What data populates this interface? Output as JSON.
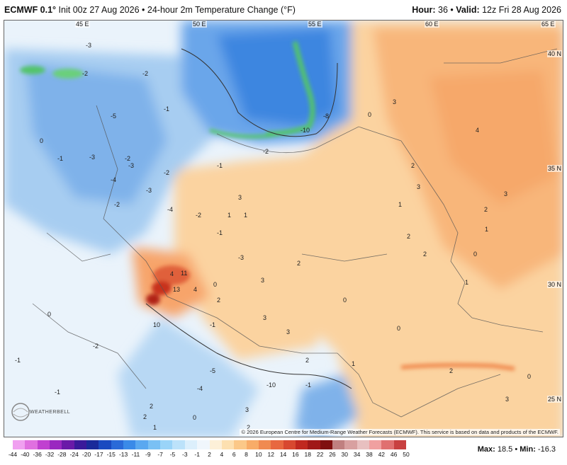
{
  "header": {
    "model": "ECMWF 0.1°",
    "init": "Init 00z 27 Aug 2026",
    "product": "24-hour 2m Temperature Change (°F)",
    "hour_label": "Hour:",
    "hour": "36",
    "valid_label": "Valid:",
    "valid": "12z Fri 28 Aug 2026"
  },
  "map": {
    "lon_labels": [
      "45 E",
      "50 E",
      "55 E",
      "60 E",
      "65 E"
    ],
    "lat_labels": [
      "40 N",
      "35 N",
      "30 N",
      "25 N"
    ],
    "value_labels": [
      "-3",
      "-2",
      "-5",
      "-2",
      "-1",
      "0",
      "-1",
      "-3",
      "-2",
      "-4",
      "-3",
      "-2",
      "-4",
      "-2",
      "-1",
      "-3",
      "-2",
      "3",
      "1",
      "-1",
      "-3",
      "-2",
      "-10",
      "-8",
      "0",
      "3",
      "4",
      "3",
      "2",
      "1",
      "2",
      "3",
      "2",
      "1",
      "0",
      "3",
      "2",
      "4",
      "4",
      "11",
      "13",
      "10",
      "2",
      "3",
      "1",
      "0",
      "3",
      "2",
      "1",
      "0",
      "2",
      "0",
      "2",
      "1",
      "0",
      "-1",
      "-2",
      "-1",
      "0",
      "2",
      "3",
      "-4",
      "-5",
      "2",
      "-1",
      "-10",
      "3",
      "0",
      "2",
      "1",
      "-1"
    ],
    "copyright": "© 2026 European Centre for Medium-Range Weather Forecasts (ECMWF). This service is based on data and products of the ECMWF.",
    "logo_text": "WEATHERBELL"
  },
  "legend": {
    "ticks": [
      "-44",
      "-40",
      "-36",
      "-32",
      "-28",
      "-24",
      "-20",
      "-17",
      "-15",
      "-13",
      "-11",
      "-9",
      "-7",
      "-5",
      "-3",
      "-1",
      "2",
      "4",
      "6",
      "8",
      "10",
      "12",
      "14",
      "16",
      "18",
      "22",
      "26",
      "30",
      "34",
      "38",
      "42",
      "46",
      "50"
    ],
    "colors": [
      "#f0a0f0",
      "#e070e0",
      "#c040d0",
      "#9a28c0",
      "#6a1aa8",
      "#3a1a9a",
      "#1a2a9a",
      "#1a4ac0",
      "#2a6ad8",
      "#3a8ae8",
      "#5aa8f0",
      "#7ac0f4",
      "#9ad4f8",
      "#bce2fa",
      "#dceffc",
      "#f0f6fc",
      "#fdf0d8",
      "#fde0b0",
      "#fbc888",
      "#f8ac68",
      "#f08a50",
      "#e86840",
      "#d84830",
      "#c02820",
      "#a01818",
      "#801010",
      "#c08080",
      "#d8a0a0",
      "#e8c0c0",
      "#f0a0a0",
      "#e07070",
      "#c84040"
    ],
    "max_label": "Max:",
    "max": "18.5",
    "min_label": "Min:",
    "min": "-16.3"
  }
}
